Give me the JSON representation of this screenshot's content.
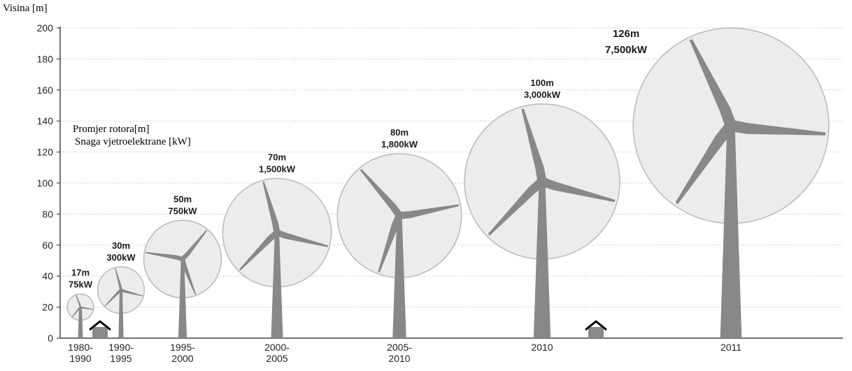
{
  "chart_data": {
    "type": "scatter",
    "ylabel": "Visina [m]",
    "ylim": [
      0,
      200
    ],
    "yticks": [
      0,
      20,
      40,
      60,
      80,
      100,
      120,
      140,
      160,
      180,
      200
    ],
    "grid": true,
    "legend": {
      "placement": "top-left",
      "lines": [
        "Promjer rotora[m]",
        "Snaga vjetroelektrane [kW]"
      ]
    },
    "turbines": [
      {
        "period": [
          "1980-",
          "1990"
        ],
        "hub_height": 20,
        "rotor_diameter": "17m",
        "power": "75kW"
      },
      {
        "period": [
          "1990-",
          "1995"
        ],
        "hub_height": 31,
        "rotor_diameter": "30m",
        "power": "300kW"
      },
      {
        "period": [
          "1995-",
          "2000"
        ],
        "hub_height": 51,
        "rotor_diameter": "50m",
        "power": "750kW"
      },
      {
        "period": [
          "2000-",
          "2005"
        ],
        "hub_height": 68,
        "rotor_diameter": "70m",
        "power": "1,500kW"
      },
      {
        "period": [
          "2005-",
          "2010"
        ],
        "hub_height": 79,
        "rotor_diameter": "80m",
        "power": "1,800kW"
      },
      {
        "period": [
          "2010"
        ],
        "hub_height": 101,
        "rotor_diameter": "100m",
        "power": "3,000kW"
      },
      {
        "period": [
          "2011"
        ],
        "hub_height": 137,
        "rotor_diameter": "126m",
        "power": "7,500kW"
      }
    ]
  }
}
